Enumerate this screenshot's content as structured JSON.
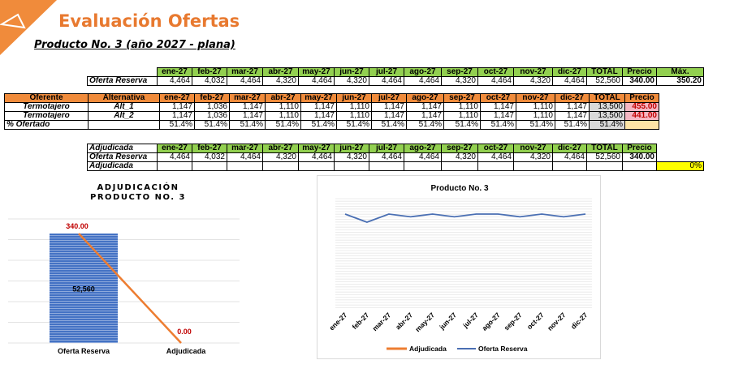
{
  "header": {
    "title": "Evaluación Ofertas",
    "subtitle": "Producto No. 3 (año 2027 - plana)"
  },
  "months": [
    "ene-27",
    "feb-27",
    "mar-27",
    "abr-27",
    "may-27",
    "jun-27",
    "jul-27",
    "ago-27",
    "sep-27",
    "oct-27",
    "nov-27",
    "dic-27"
  ],
  "table1": {
    "col_total": "TOTAL",
    "col_precio": "Precio",
    "col_max": "Máx.",
    "row_label": "Oferta Reserva",
    "values": [
      "4,464",
      "4,032",
      "4,464",
      "4,320",
      "4,464",
      "4,320",
      "4,464",
      "4,464",
      "4,320",
      "4,464",
      "4,320",
      "4,464"
    ],
    "total": "52,560",
    "precio": "340.00",
    "max": "350.20"
  },
  "table2": {
    "col_oferente": "Oferente",
    "col_alternativa": "Alternativa",
    "col_total": "TOTAL",
    "col_precio": "Precio",
    "rows": [
      {
        "oferente": "Termotajero",
        "alt": "Alt_1",
        "values": [
          "1,147",
          "1,036",
          "1,147",
          "1,110",
          "1,147",
          "1,110",
          "1,147",
          "1,147",
          "1,110",
          "1,147",
          "1,110",
          "1,147"
        ],
        "total": "13,500",
        "precio": "455.00"
      },
      {
        "oferente": "Termotajero",
        "alt": "Alt_2",
        "values": [
          "1,147",
          "1,036",
          "1,147",
          "1,110",
          "1,147",
          "1,110",
          "1,147",
          "1,147",
          "1,110",
          "1,147",
          "1,110",
          "1,147"
        ],
        "total": "13,500",
        "precio": "441.00"
      }
    ],
    "pct_label": "% Ofertado",
    "pct_values": [
      "51.4%",
      "51.4%",
      "51.4%",
      "51.4%",
      "51.4%",
      "51.4%",
      "51.4%",
      "51.4%",
      "51.4%",
      "51.4%",
      "51.4%",
      "51.4%"
    ],
    "pct_total": "51.4%"
  },
  "table3": {
    "header_label": "Adjudicada",
    "col_total": "TOTAL",
    "col_precio": "Precio",
    "row1_label": "Oferta Reserva",
    "row1_values": [
      "4,464",
      "4,032",
      "4,464",
      "4,320",
      "4,464",
      "4,320",
      "4,464",
      "4,464",
      "4,320",
      "4,464",
      "4,320",
      "4,464"
    ],
    "row1_total": "52,560",
    "row1_precio": "340.00",
    "row2_label": "Adjudicada",
    "row2_pct": "0%"
  },
  "colors": {
    "accent": "#e8792f",
    "green": "#92d050",
    "orange": "#f08b3b",
    "bar_blue": "#4472c4",
    "line_blue": "#4a6fb3"
  },
  "chart_data": [
    {
      "type": "bar",
      "title": "ADJUDICACIÓN PRODUCTO NO. 3",
      "categories": [
        "Oferta Reserva",
        "Adjudicada"
      ],
      "series": [
        {
          "values": [
            52560,
            0
          ],
          "labels": [
            "52,560",
            ""
          ]
        },
        {
          "type": "line",
          "values": [
            340.0,
            0.0
          ],
          "labels": [
            "340.00",
            "0.00"
          ]
        }
      ]
    },
    {
      "type": "line",
      "title": "Producto No. 3",
      "categories": [
        "ene-27",
        "feb-27",
        "mar-27",
        "abr-27",
        "may-27",
        "jun-27",
        "jul-27",
        "ago-27",
        "sep-27",
        "oct-27",
        "nov-27",
        "dic-27"
      ],
      "series": [
        {
          "name": "Adjudicada",
          "values": [
            0,
            0,
            0,
            0,
            0,
            0,
            0,
            0,
            0,
            0,
            0,
            0
          ]
        },
        {
          "name": "Oferta Reserva",
          "values": [
            4464,
            4032,
            4464,
            4320,
            4464,
            4320,
            4464,
            4464,
            4320,
            4464,
            4320,
            4464
          ]
        }
      ],
      "legend": "bottom"
    }
  ]
}
